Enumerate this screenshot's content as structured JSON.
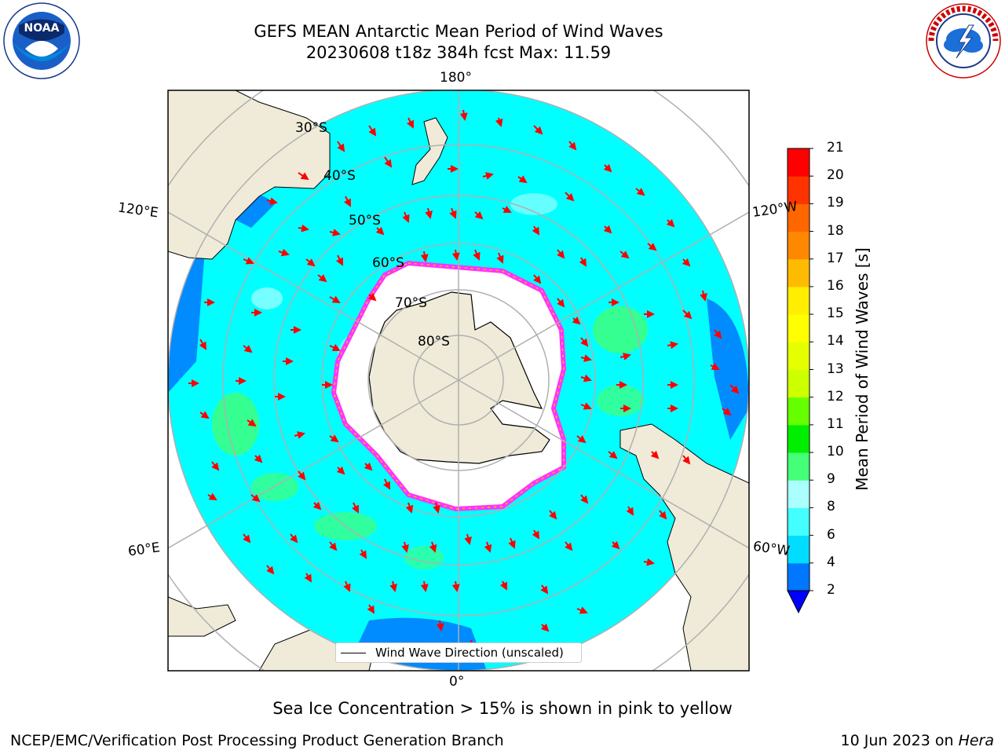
{
  "title": {
    "line1": "GEFS MEAN Antarctic Mean Period of Wind Waves",
    "line2": "20230608 t18z 384h fcst   Max: 11.59"
  },
  "logos": {
    "left": {
      "icon": "noaa-logo-icon",
      "text": "NOAA",
      "ring_text": "NATIONAL OCEANIC AND ATMOSPHERIC ADMINISTRATION · U.S. DEPARTMENT OF COMMERCE"
    },
    "right": {
      "icon": "nws-logo-icon",
      "ring_text": "NATIONAL WEATHER SERVICE"
    }
  },
  "map": {
    "projection": "south-polar-stereographic",
    "longitude_labels": {
      "top": "180°",
      "bottom": "0°",
      "upper_left": "120°E",
      "upper_right": "120°W",
      "lower_left": "60°E",
      "lower_right": "60°W"
    },
    "latitude_labels": [
      "30°S",
      "40°S",
      "50°S",
      "60°S",
      "70°S",
      "80°S"
    ],
    "legend": "Wind Wave Direction (unscaled)",
    "colors": {
      "land": "#efebd8",
      "ocean_dominant": "#00ffff",
      "ice": "#ffffff",
      "ice_edge": "#ff33ff",
      "arrow": "#ff0000",
      "grid": "#b0b0b0"
    }
  },
  "colorbar": {
    "label": "Mean Period of Wind Waves [s]",
    "ticks": [
      "2",
      "4",
      "6",
      "8",
      "9",
      "10",
      "11",
      "12",
      "13",
      "14",
      "15",
      "16",
      "17",
      "18",
      "19",
      "20",
      "21"
    ],
    "colors": [
      "#0077ff",
      "#00ddff",
      "#44ffff",
      "#aaffff",
      "#44ff77",
      "#00ee00",
      "#66ff00",
      "#ccff00",
      "#e6ff00",
      "#ffff00",
      "#ffee00",
      "#ffbb00",
      "#ff8800",
      "#ff6600",
      "#ff3300",
      "#ff0000"
    ],
    "extend_color": "#0000ff"
  },
  "caption": "Sea Ice Concentration > 15% is shown in pink to yellow",
  "footer": {
    "left": "NCEP/EMC/Verification Post Processing Product Generation Branch",
    "right_prefix": "10 Jun 2023 on ",
    "right_italic": "Hera"
  }
}
